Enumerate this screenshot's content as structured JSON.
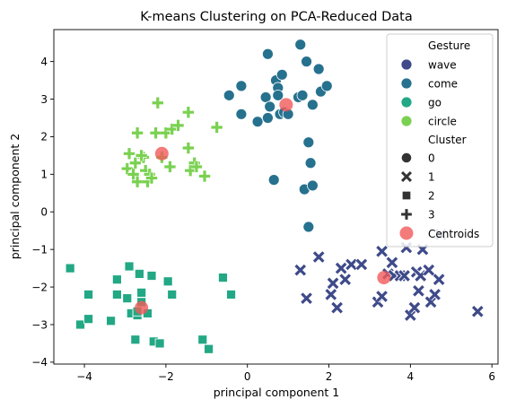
{
  "chart_data": {
    "type": "scatter",
    "title": "K-means Clustering on PCA-Reduced Data",
    "xlabel": "principal component 1",
    "ylabel": "principal component 2",
    "xlim": [
      -4.75,
      6.15
    ],
    "ylim": [
      -4.05,
      4.85
    ],
    "x_ticks": [
      -4,
      -2,
      0,
      2,
      4,
      6
    ],
    "y_ticks": [
      -4,
      -3,
      -2,
      -1,
      0,
      1,
      2,
      3,
      4
    ],
    "grid": false,
    "legend_position": "top-right",
    "legend": {
      "hue_title": "Gesture",
      "hue_entries": [
        {
          "label": "wave",
          "color": "#3e4a89"
        },
        {
          "label": "come",
          "color": "#26718e"
        },
        {
          "label": "go",
          "color": "#22a884"
        },
        {
          "label": "circle",
          "color": "#7ad151"
        }
      ],
      "style_title": "Cluster",
      "style_entries": [
        {
          "label": "0",
          "marker": "circle"
        },
        {
          "label": "1",
          "marker": "x"
        },
        {
          "label": "2",
          "marker": "square"
        },
        {
          "label": "3",
          "marker": "plus"
        }
      ],
      "centroid_label": "Centroids",
      "centroid_color": "#f15a5a"
    },
    "series": [
      {
        "name": "wave",
        "color": "#3e4a89",
        "marker": "x",
        "points": [
          [
            1.3,
            -1.55
          ],
          [
            1.45,
            -2.3
          ],
          [
            1.75,
            -1.2
          ],
          [
            2.05,
            -2.2
          ],
          [
            2.1,
            -1.9
          ],
          [
            2.2,
            -2.55
          ],
          [
            2.3,
            -1.5
          ],
          [
            2.4,
            -1.8
          ],
          [
            2.55,
            -1.4
          ],
          [
            2.8,
            -1.4
          ],
          [
            3.2,
            -2.4
          ],
          [
            3.3,
            -2.25
          ],
          [
            3.3,
            -1.05
          ],
          [
            3.45,
            -1.65
          ],
          [
            3.55,
            -1.35
          ],
          [
            3.6,
            -1.7
          ],
          [
            3.75,
            -1.7
          ],
          [
            3.85,
            -1.7
          ],
          [
            3.9,
            -0.95
          ],
          [
            4.0,
            -2.75
          ],
          [
            4.1,
            -2.55
          ],
          [
            4.15,
            -1.6
          ],
          [
            4.2,
            -2.1
          ],
          [
            4.25,
            -1.7
          ],
          [
            4.3,
            -1.0
          ],
          [
            4.45,
            -1.55
          ],
          [
            4.5,
            -2.4
          ],
          [
            4.6,
            -2.2
          ],
          [
            4.7,
            -1.8
          ],
          [
            4.75,
            -0.6
          ],
          [
            5.65,
            -2.65
          ]
        ]
      },
      {
        "name": "come",
        "color": "#26718e",
        "marker": "circle",
        "points": [
          [
            -0.45,
            3.1
          ],
          [
            -0.15,
            2.6
          ],
          [
            -0.15,
            3.35
          ],
          [
            0.25,
            2.4
          ],
          [
            0.45,
            3.05
          ],
          [
            0.5,
            2.5
          ],
          [
            0.5,
            4.2
          ],
          [
            0.55,
            2.8
          ],
          [
            0.7,
            3.5
          ],
          [
            0.75,
            3.3
          ],
          [
            0.75,
            3.1
          ],
          [
            0.8,
            2.6
          ],
          [
            0.85,
            3.65
          ],
          [
            0.9,
            2.65
          ],
          [
            0.65,
            0.85
          ],
          [
            1.0,
            2.6
          ],
          [
            1.25,
            3.05
          ],
          [
            1.3,
            4.45
          ],
          [
            1.35,
            3.1
          ],
          [
            1.4,
            0.6
          ],
          [
            1.45,
            4.0
          ],
          [
            1.5,
            1.85
          ],
          [
            1.55,
            1.3
          ],
          [
            1.6,
            2.85
          ],
          [
            1.6,
            0.7
          ],
          [
            1.75,
            3.8
          ],
          [
            1.8,
            3.2
          ],
          [
            1.95,
            3.35
          ],
          [
            1.5,
            -0.4
          ]
        ]
      },
      {
        "name": "go",
        "color": "#22a884",
        "marker": "square",
        "points": [
          [
            -4.35,
            -1.5
          ],
          [
            -4.1,
            -3.0
          ],
          [
            -3.9,
            -2.2
          ],
          [
            -3.9,
            -2.85
          ],
          [
            -3.35,
            -2.9
          ],
          [
            -3.2,
            -1.8
          ],
          [
            -3.2,
            -2.2
          ],
          [
            -2.95,
            -2.3
          ],
          [
            -2.9,
            -1.45
          ],
          [
            -2.85,
            -2.7
          ],
          [
            -2.75,
            -3.4
          ],
          [
            -2.7,
            -2.75
          ],
          [
            -2.65,
            -1.65
          ],
          [
            -2.6,
            -2.15
          ],
          [
            -2.45,
            -2.7
          ],
          [
            -2.35,
            -1.7
          ],
          [
            -2.3,
            -3.45
          ],
          [
            -2.15,
            -3.5
          ],
          [
            -1.95,
            -1.85
          ],
          [
            -1.85,
            -2.2
          ],
          [
            -1.1,
            -3.4
          ],
          [
            -0.95,
            -3.65
          ],
          [
            -0.6,
            -1.75
          ],
          [
            -0.4,
            -2.2
          ],
          [
            -2.7,
            -2.65
          ],
          [
            -2.6,
            -2.4
          ]
        ]
      },
      {
        "name": "circle",
        "color": "#7ad151",
        "marker": "plus",
        "points": [
          [
            -2.95,
            1.15
          ],
          [
            -2.9,
            1.55
          ],
          [
            -2.8,
            1.0
          ],
          [
            -2.75,
            1.3
          ],
          [
            -2.7,
            0.8
          ],
          [
            -2.7,
            2.1
          ],
          [
            -2.55,
            1.45
          ],
          [
            -2.5,
            1.1
          ],
          [
            -2.45,
            0.8
          ],
          [
            -2.4,
            1.0
          ],
          [
            -2.35,
            0.9
          ],
          [
            -2.25,
            2.1
          ],
          [
            -2.2,
            2.9
          ],
          [
            -2.1,
            1.45
          ],
          [
            -2.0,
            2.1
          ],
          [
            -1.9,
            1.2
          ],
          [
            -1.85,
            2.2
          ],
          [
            -1.7,
            2.3
          ],
          [
            -1.45,
            2.65
          ],
          [
            -1.45,
            1.7
          ],
          [
            -1.4,
            1.1
          ],
          [
            -1.3,
            1.3
          ],
          [
            -1.25,
            1.2
          ],
          [
            -1.05,
            0.95
          ],
          [
            -0.75,
            2.25
          ],
          [
            -2.6,
            1.5
          ]
        ]
      }
    ],
    "centroids": [
      [
        0.95,
        2.85
      ],
      [
        3.35,
        -1.75
      ],
      [
        -2.6,
        -2.55
      ],
      [
        -2.1,
        1.55
      ]
    ]
  }
}
